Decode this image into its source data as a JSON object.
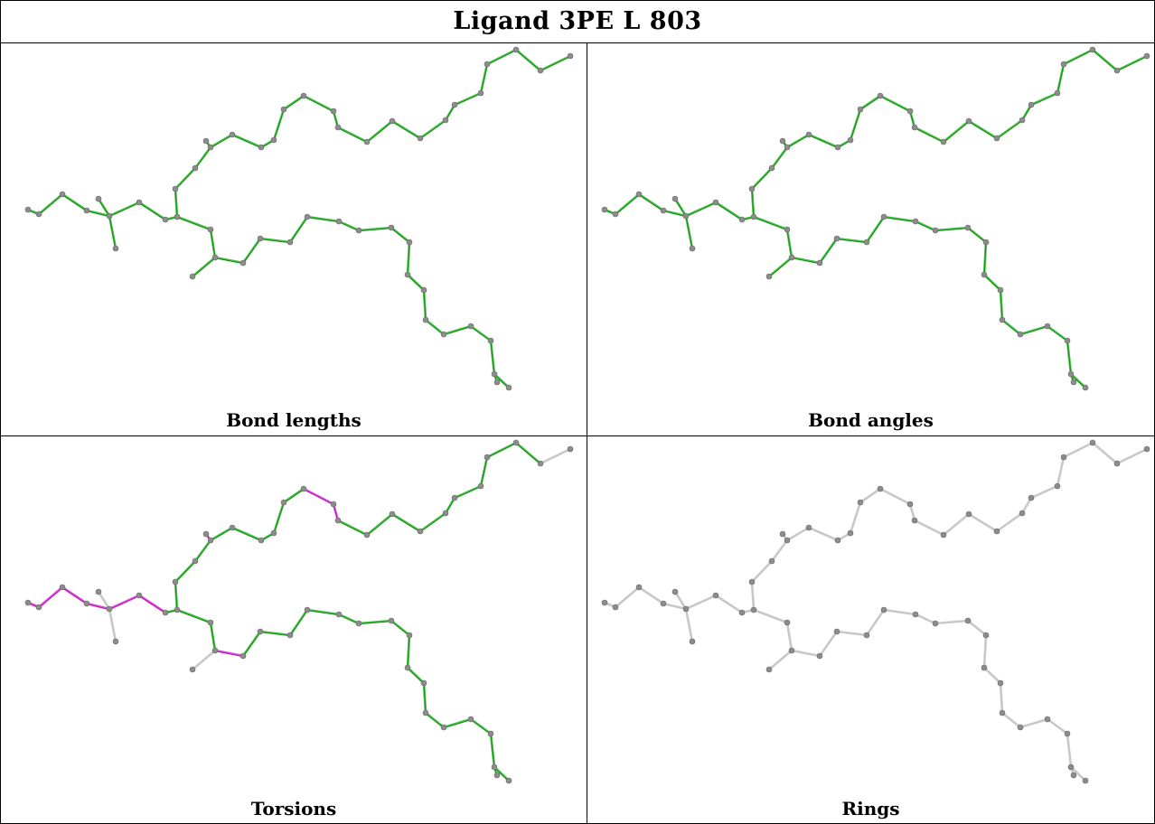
{
  "title": "Ligand 3PE L 803",
  "colors": {
    "ok_bond": "#40c040",
    "ok_bond_dark": "#1a7a1a",
    "outlier_bond": "#e040e0",
    "unassessed_bond": "#c8c8c8",
    "atom": "#8c8c8c"
  },
  "panels": [
    {
      "caption": "Bond lengths",
      "mode": "lengths"
    },
    {
      "caption": "Bond angles",
      "mode": "angles"
    },
    {
      "caption": "Torsions",
      "mode": "torsions"
    },
    {
      "caption": "Rings",
      "mode": "rings"
    }
  ]
}
